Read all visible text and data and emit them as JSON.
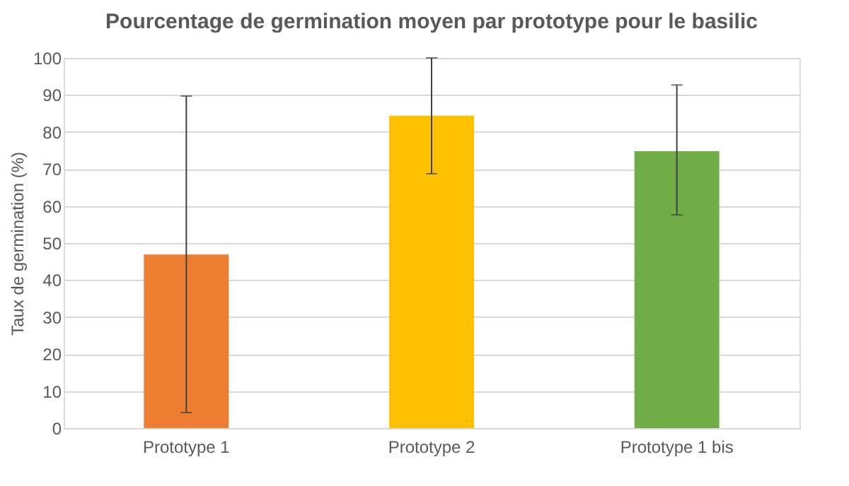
{
  "chart_data": {
    "type": "bar",
    "title": "Pourcentage de germination moyen par prototype pour le basilic",
    "ylabel": "Taux de germination (%)",
    "categories": [
      "Prototype 1",
      "Prototype 2",
      "Prototype 1 bis"
    ],
    "values": [
      46.9,
      84.4,
      74.8
    ],
    "colors": [
      "#ed7d31",
      "#ffc000",
      "#70ad47"
    ],
    "errors": [
      [
        4.2,
        89.7
      ],
      [
        68.7,
        100
      ],
      [
        57.6,
        92.7
      ]
    ],
    "ylim": [
      0,
      100
    ],
    "yticks": [
      0,
      10,
      20,
      30,
      40,
      50,
      60,
      70,
      80,
      90,
      100
    ],
    "grid": "y"
  }
}
